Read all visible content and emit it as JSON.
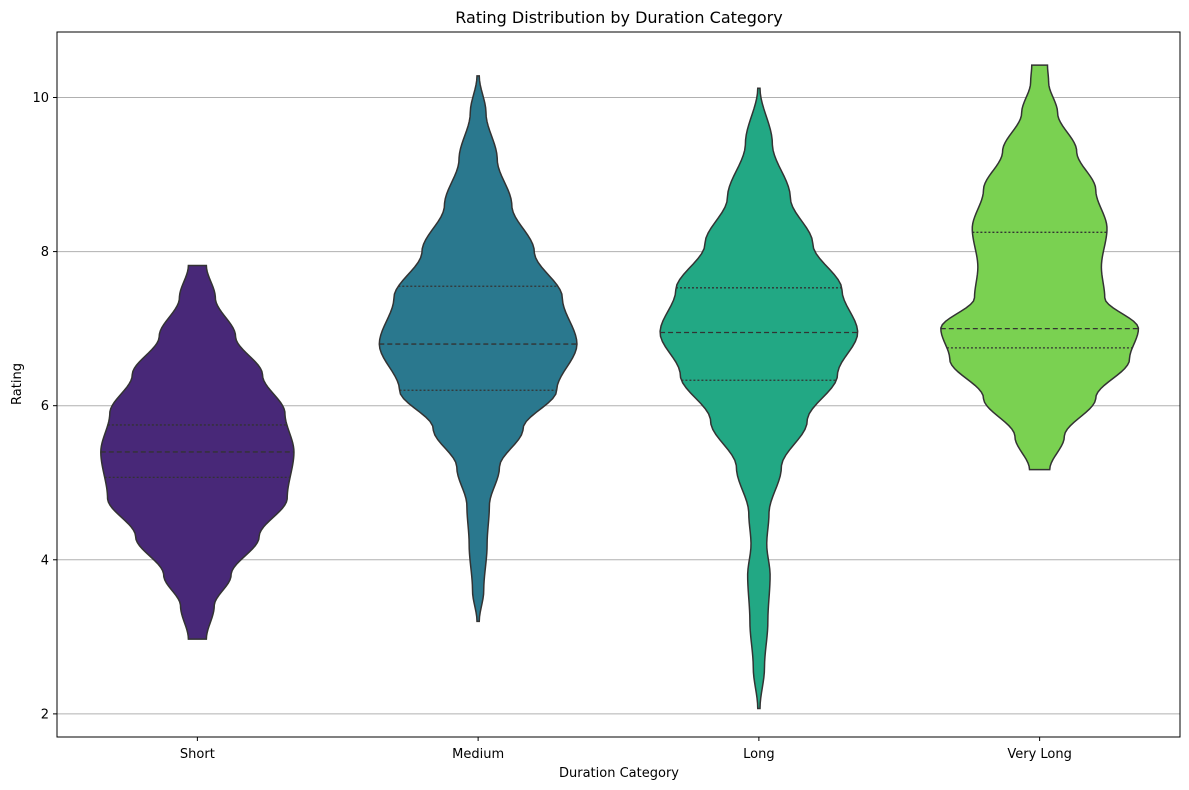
{
  "chart_data": {
    "type": "violin",
    "title": "Rating Distribution by Duration Category",
    "xlabel": "Duration Category",
    "ylabel": "Rating",
    "categories": [
      "Short",
      "Medium",
      "Long",
      "Very Long"
    ],
    "ylim": [
      1.7,
      10.85
    ],
    "yticks": [
      2,
      4,
      6,
      8,
      10
    ],
    "grid": "y-major",
    "legend": "none",
    "colors": [
      "#482878",
      "#2a788e",
      "#22a884",
      "#7ad151"
    ],
    "violins": [
      {
        "category": "Short",
        "min": 2.97,
        "max": 7.82,
        "q1": 5.07,
        "median": 5.4,
        "q3": 5.75,
        "profile": [
          [
            2.97,
            0.08
          ],
          [
            3.4,
            0.15
          ],
          [
            3.8,
            0.3
          ],
          [
            4.3,
            0.55
          ],
          [
            4.8,
            0.8
          ],
          [
            5.4,
            0.86
          ],
          [
            5.9,
            0.78
          ],
          [
            6.4,
            0.58
          ],
          [
            6.9,
            0.34
          ],
          [
            7.4,
            0.16
          ],
          [
            7.82,
            0.08
          ]
        ]
      },
      {
        "category": "Medium",
        "min": 3.2,
        "max": 10.28,
        "q1": 6.2,
        "median": 6.8,
        "q3": 7.55,
        "profile": [
          [
            3.2,
            0.01
          ],
          [
            3.6,
            0.05
          ],
          [
            4.2,
            0.08
          ],
          [
            4.7,
            0.1
          ],
          [
            5.2,
            0.19
          ],
          [
            5.7,
            0.4
          ],
          [
            6.2,
            0.7
          ],
          [
            6.8,
            0.88
          ],
          [
            7.4,
            0.75
          ],
          [
            8.0,
            0.5
          ],
          [
            8.6,
            0.3
          ],
          [
            9.2,
            0.17
          ],
          [
            9.8,
            0.07
          ],
          [
            10.28,
            0.01
          ]
        ]
      },
      {
        "category": "Long",
        "min": 2.07,
        "max": 10.12,
        "q1": 6.33,
        "median": 6.95,
        "q3": 7.53,
        "profile": [
          [
            2.07,
            0.01
          ],
          [
            2.6,
            0.05
          ],
          [
            3.2,
            0.08
          ],
          [
            3.8,
            0.1
          ],
          [
            4.2,
            0.07
          ],
          [
            4.6,
            0.09
          ],
          [
            5.2,
            0.2
          ],
          [
            5.8,
            0.43
          ],
          [
            6.4,
            0.7
          ],
          [
            6.95,
            0.88
          ],
          [
            7.5,
            0.74
          ],
          [
            8.1,
            0.48
          ],
          [
            8.7,
            0.28
          ],
          [
            9.4,
            0.12
          ],
          [
            10.12,
            0.01
          ]
        ]
      },
      {
        "category": "Very Long",
        "min": 5.17,
        "max": 10.42,
        "q1": 6.75,
        "median": 7.0,
        "q3": 8.25,
        "profile": [
          [
            5.17,
            0.09
          ],
          [
            5.6,
            0.22
          ],
          [
            6.1,
            0.5
          ],
          [
            6.6,
            0.8
          ],
          [
            7.0,
            0.88
          ],
          [
            7.4,
            0.58
          ],
          [
            7.8,
            0.55
          ],
          [
            8.3,
            0.6
          ],
          [
            8.8,
            0.5
          ],
          [
            9.3,
            0.33
          ],
          [
            9.8,
            0.16
          ],
          [
            10.2,
            0.08
          ],
          [
            10.42,
            0.07
          ]
        ]
      }
    ]
  }
}
